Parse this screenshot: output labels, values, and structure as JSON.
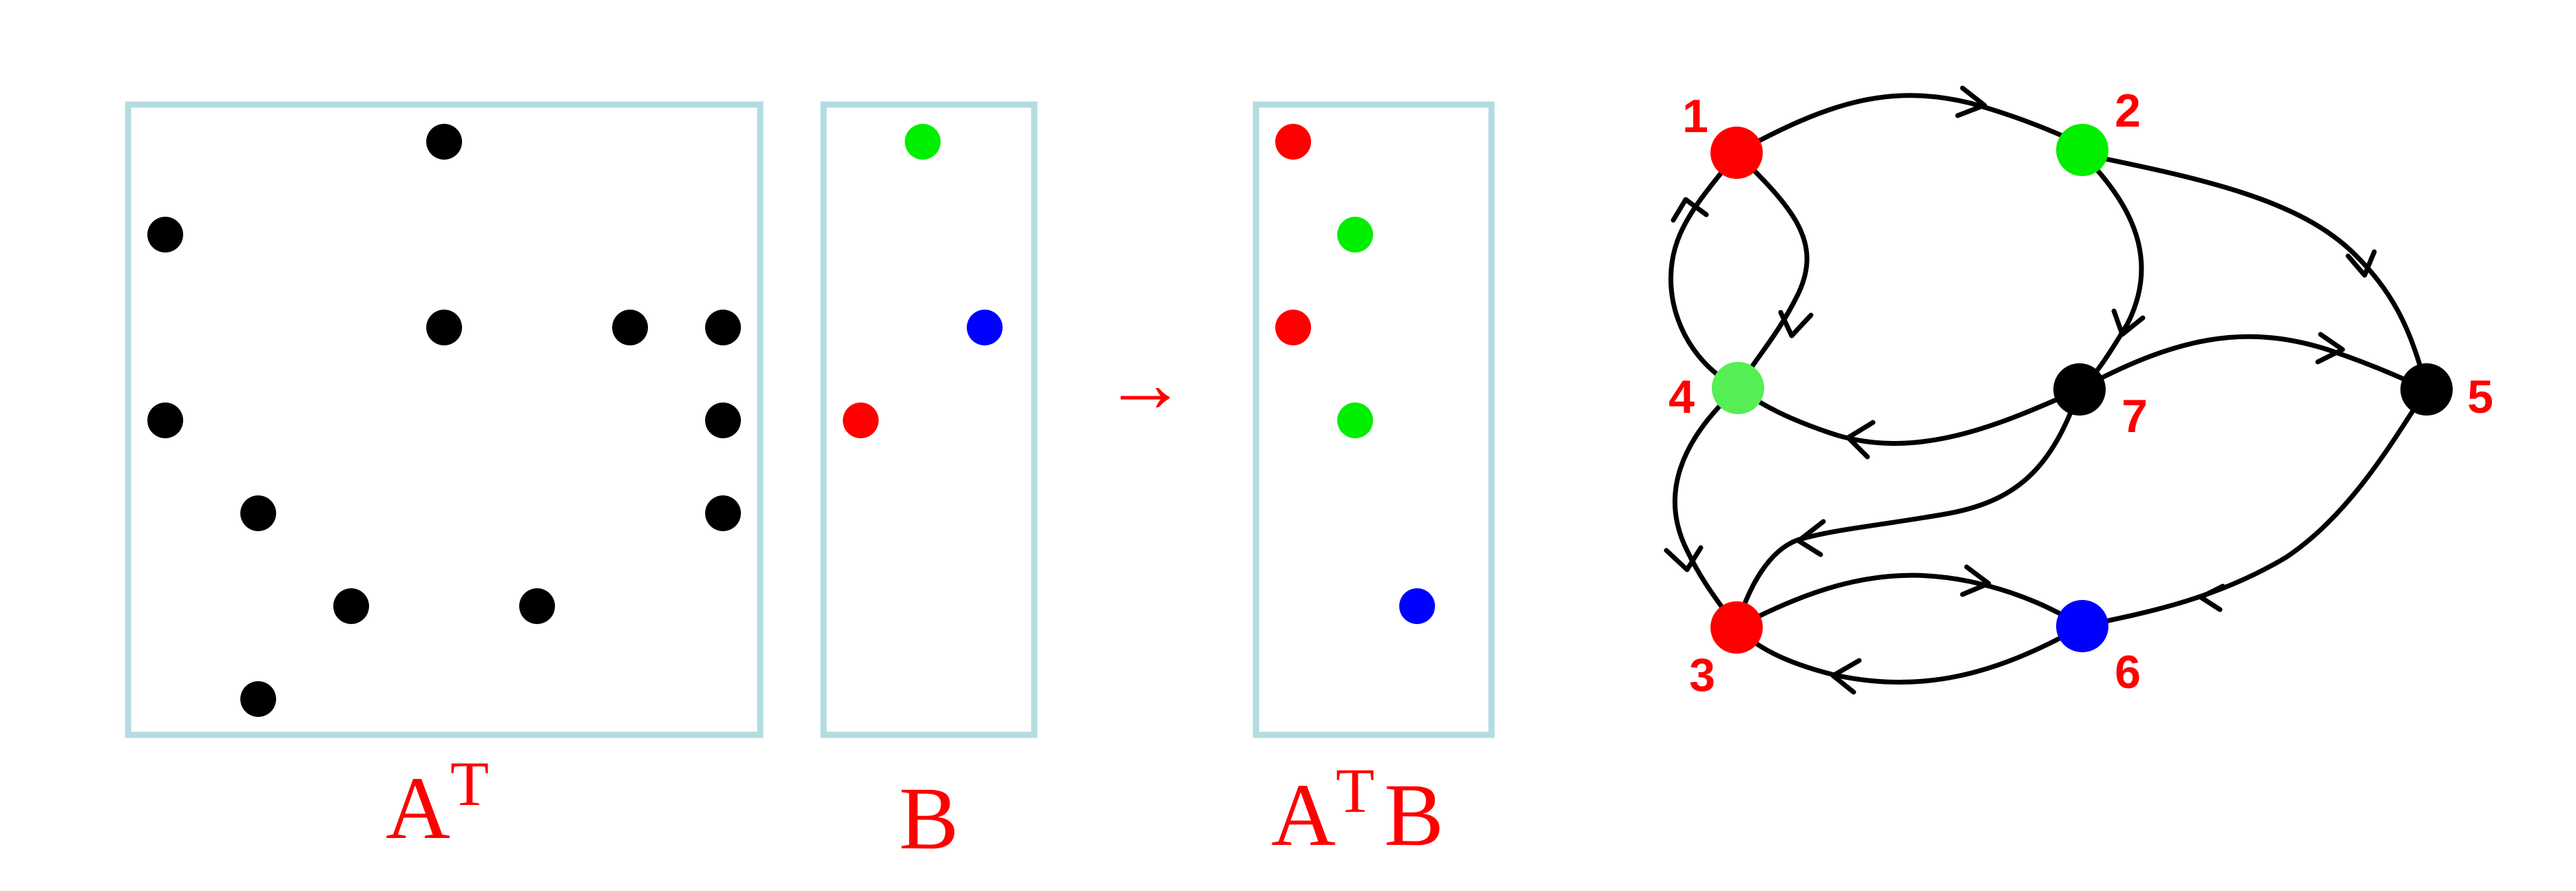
{
  "colors": {
    "frame": "#b3dce0",
    "label": "#ff0000",
    "dot_black": "#000000",
    "dot_red": "#ff0000",
    "dot_green": "#00ee00",
    "dot_light_green": "#55ee55",
    "dot_blue": "#0000ff",
    "edge": "#000000"
  },
  "matrices": {
    "at": {
      "label_main": "A",
      "label_sup": "T",
      "nonzeros": [
        {
          "row": 1,
          "col": 4,
          "color": "black"
        },
        {
          "row": 2,
          "col": 1,
          "color": "black"
        },
        {
          "row": 3,
          "col": 4,
          "color": "black"
        },
        {
          "row": 3,
          "col": 6,
          "color": "black"
        },
        {
          "row": 3,
          "col": 7,
          "color": "black"
        },
        {
          "row": 4,
          "col": 1,
          "color": "black"
        },
        {
          "row": 4,
          "col": 7,
          "color": "black"
        },
        {
          "row": 5,
          "col": 2,
          "color": "black"
        },
        {
          "row": 5,
          "col": 7,
          "color": "black"
        },
        {
          "row": 6,
          "col": 3,
          "color": "black"
        },
        {
          "row": 6,
          "col": 5,
          "color": "black"
        },
        {
          "row": 7,
          "col": 2,
          "color": "black"
        }
      ]
    },
    "b": {
      "label": "B",
      "nonzeros": [
        {
          "row": 1,
          "col": 2,
          "color": "green"
        },
        {
          "row": 3,
          "col": 3,
          "color": "blue"
        },
        {
          "row": 4,
          "col": 1,
          "color": "red"
        }
      ]
    },
    "arrow": "→",
    "atb": {
      "label_main": "A",
      "label_sup": "T",
      "label_b": "B",
      "nonzeros": [
        {
          "row": 1,
          "col": 1,
          "color": "red"
        },
        {
          "row": 2,
          "col": 2,
          "color": "green"
        },
        {
          "row": 3,
          "col": 1,
          "color": "red"
        },
        {
          "row": 4,
          "col": 2,
          "color": "green"
        },
        {
          "row": 6,
          "col": 3,
          "color": "blue"
        }
      ]
    }
  },
  "graph": {
    "nodes": [
      {
        "id": "1",
        "label": "1",
        "color": "red"
      },
      {
        "id": "2",
        "label": "2",
        "color": "green"
      },
      {
        "id": "3",
        "label": "3",
        "color": "red"
      },
      {
        "id": "4",
        "label": "4",
        "color": "light_green"
      },
      {
        "id": "5",
        "label": "5",
        "color": "black"
      },
      {
        "id": "6",
        "label": "6",
        "color": "blue"
      },
      {
        "id": "7",
        "label": "7",
        "color": "black"
      }
    ],
    "edges": [
      {
        "from": "1",
        "to": "2"
      },
      {
        "from": "4",
        "to": "1"
      },
      {
        "from": "1",
        "to": "4"
      },
      {
        "from": "2",
        "to": "7"
      },
      {
        "from": "2",
        "to": "5"
      },
      {
        "from": "7",
        "to": "5"
      },
      {
        "from": "7",
        "to": "4"
      },
      {
        "from": "4",
        "to": "3"
      },
      {
        "from": "7",
        "to": "3"
      },
      {
        "from": "3",
        "to": "6"
      },
      {
        "from": "6",
        "to": "3"
      },
      {
        "from": "5",
        "to": "6"
      }
    ]
  }
}
